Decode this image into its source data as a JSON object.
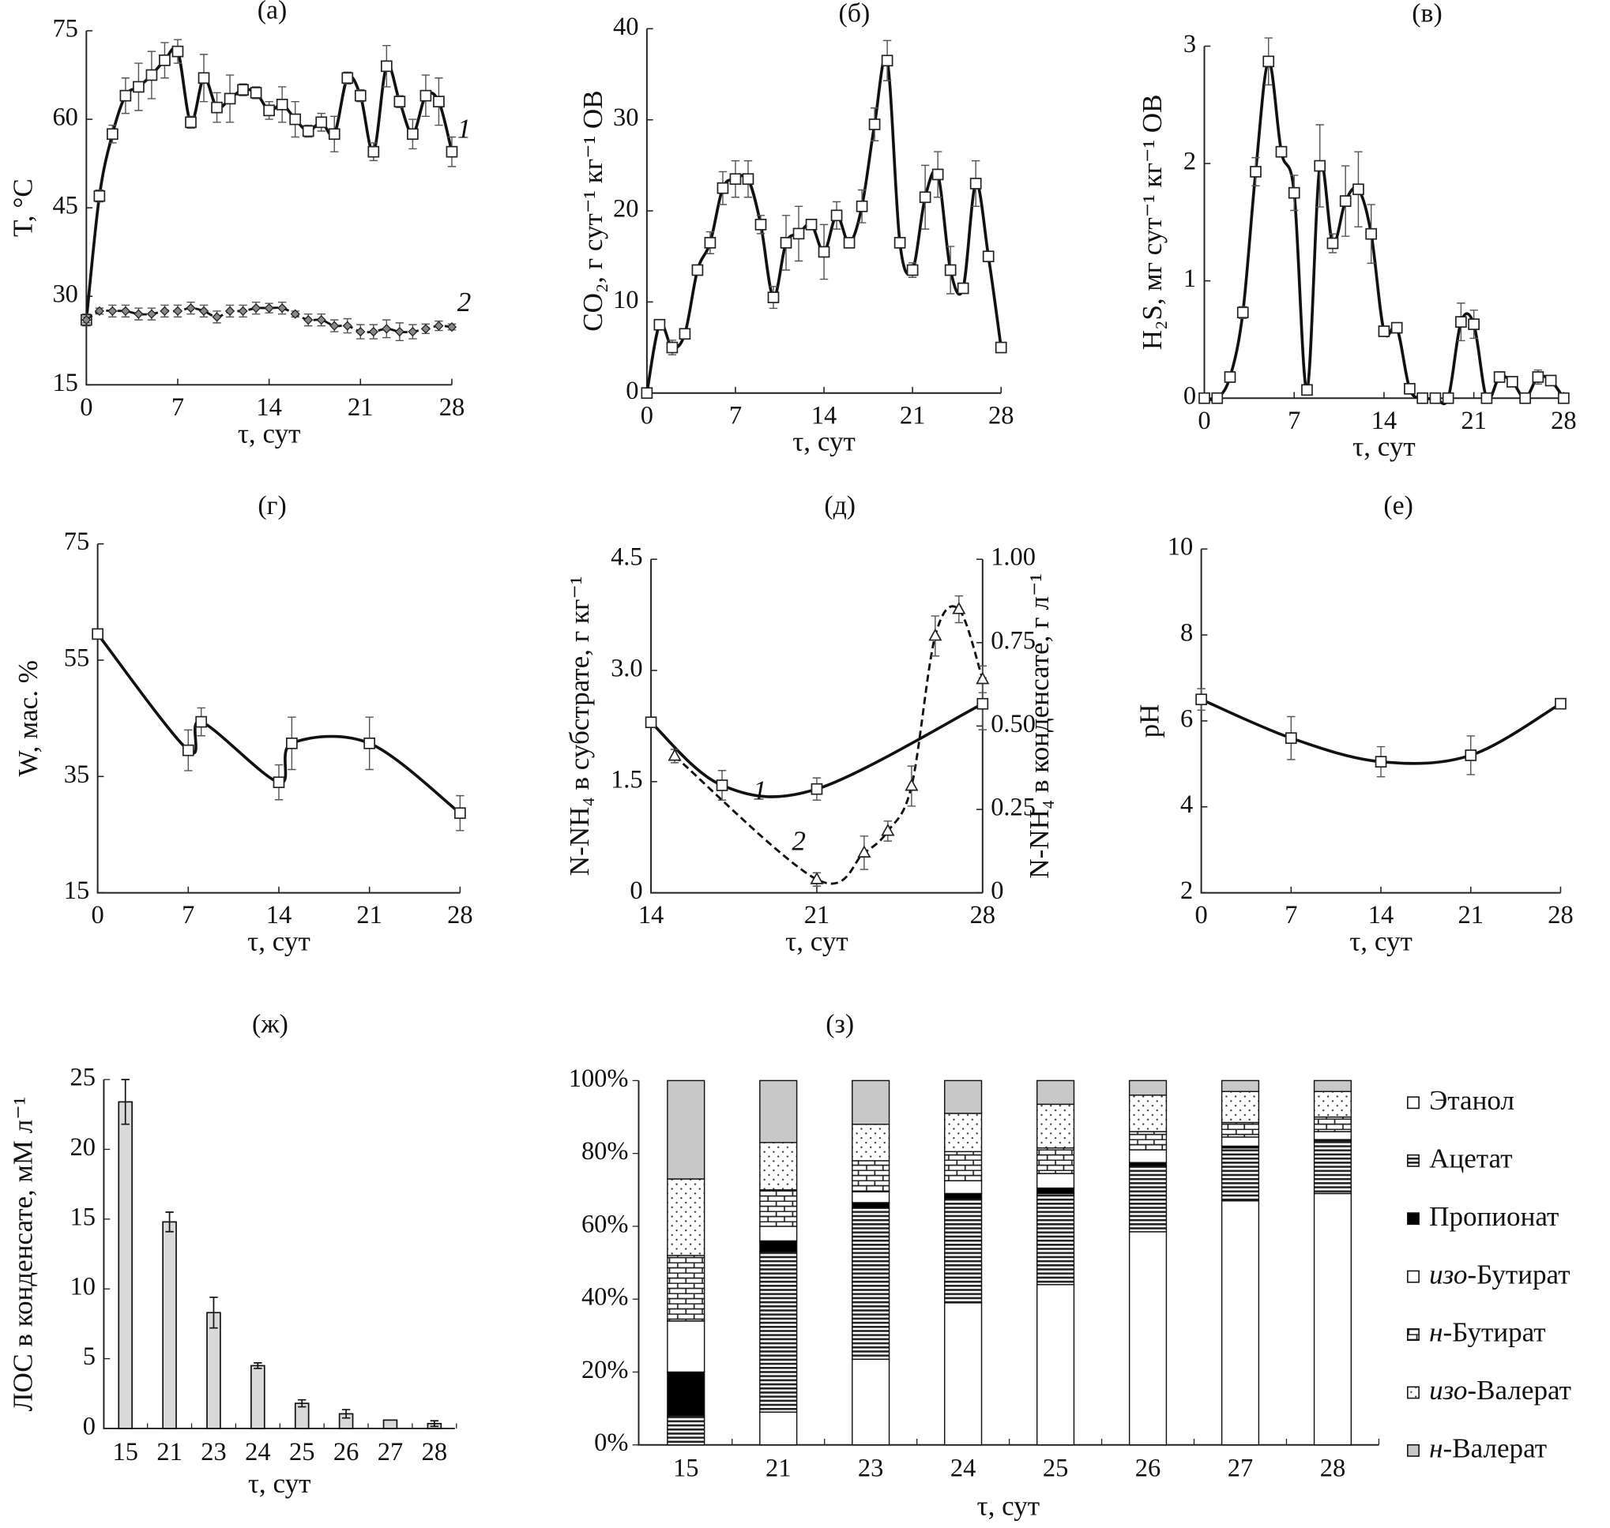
{
  "chart_data": [
    {
      "panel": "a",
      "title": "(а)",
      "type": "line",
      "xlabel": "τ, сут",
      "ylabel": "T, °C",
      "xlim": [
        0,
        28
      ],
      "xticks": [
        0,
        7,
        14,
        21,
        28
      ],
      "ylim": [
        15,
        75
      ],
      "yticks": [
        15,
        30,
        45,
        60,
        75
      ],
      "grid": false,
      "series": [
        {
          "name": "1",
          "marker": "square",
          "line": "solid",
          "x": [
            0,
            1,
            2,
            3,
            4,
            5,
            6,
            7,
            8,
            9,
            10,
            11,
            12,
            13,
            14,
            15,
            16,
            17,
            18,
            19,
            20,
            21,
            22,
            23,
            24,
            25,
            26,
            27,
            28
          ],
          "y": [
            26,
            47,
            57.5,
            64,
            65.5,
            67.5,
            70,
            71.5,
            59.5,
            67,
            62,
            63.5,
            65,
            64.5,
            61.5,
            62.5,
            60,
            58,
            59.5,
            57.5,
            67,
            64,
            54.5,
            69,
            63,
            57.5,
            64,
            63,
            54.5
          ],
          "err": [
            1,
            1,
            1.5,
            3,
            4,
            4,
            3,
            2,
            1,
            4,
            2.5,
            4,
            1,
            1,
            1.5,
            3,
            3,
            1,
            1.5,
            3,
            1,
            1,
            1.5,
            3.5,
            1,
            2.5,
            3.5,
            4,
            2.5
          ]
        },
        {
          "name": "2",
          "marker": "diamond",
          "line": "dashed",
          "x": [
            0,
            1,
            2,
            3,
            4,
            5,
            6,
            7,
            8,
            9,
            10,
            11,
            12,
            13,
            14,
            15,
            16,
            17,
            18,
            19,
            20,
            21,
            22,
            23,
            24,
            25,
            26,
            27,
            28
          ],
          "y": [
            26,
            27.5,
            27.5,
            27.5,
            27,
            27,
            27.5,
            27.5,
            28,
            27.5,
            26.5,
            27.5,
            27.5,
            28,
            28,
            28,
            27,
            26,
            26,
            25,
            25,
            24,
            24,
            24.5,
            24,
            24,
            24.5,
            25,
            24.8
          ],
          "err": [
            0.5,
            0.5,
            1,
            1,
            1,
            1,
            1,
            1,
            1,
            1,
            1,
            1,
            1,
            1,
            0.8,
            1,
            0.5,
            1,
            1,
            1,
            1.2,
            1.2,
            1.2,
            1.5,
            1.5,
            1.2,
            0.8,
            0.8,
            0.5
          ]
        }
      ]
    },
    {
      "panel": "b",
      "title": "(б)",
      "type": "line",
      "xlabel": "τ, сут",
      "ylabel": "CO₂, г сут⁻¹ кг⁻¹ ОВ",
      "xlim": [
        0,
        28
      ],
      "xticks": [
        0,
        7,
        14,
        21,
        28
      ],
      "ylim": [
        0,
        40
      ],
      "yticks": [
        0,
        10,
        20,
        30,
        40
      ],
      "grid": false,
      "series": [
        {
          "marker": "square",
          "line": "solid",
          "x": [
            0,
            1,
            2,
            3,
            4,
            5,
            6,
            7,
            8,
            9,
            10,
            11,
            12,
            13,
            14,
            15,
            16,
            17,
            18,
            19,
            20,
            21,
            22,
            23,
            24,
            25,
            26,
            27,
            28
          ],
          "y": [
            0,
            7.5,
            5,
            6.5,
            13.5,
            16.5,
            22.5,
            23.5,
            23.5,
            18.5,
            10.5,
            16.5,
            17.5,
            18.5,
            15.5,
            19.5,
            16.5,
            20.5,
            29.5,
            36.5,
            16.5,
            13.5,
            21.5,
            24,
            13.5,
            11.5,
            23,
            15,
            5
          ],
          "err": [
            0,
            0.5,
            0.8,
            0.3,
            0.3,
            1.2,
            1.8,
            2,
            2,
            1,
            1.2,
            3,
            3,
            0.3,
            3,
            1.5,
            0.3,
            1.8,
            1.8,
            2.2,
            0.3,
            0.8,
            3.5,
            2.5,
            2.6,
            0.3,
            2.5,
            0.3,
            0
          ]
        }
      ]
    },
    {
      "panel": "v",
      "title": "(в)",
      "type": "line",
      "xlabel": "τ, сут",
      "ylabel": "H₂S, мг сут⁻¹ кг⁻¹ ОВ",
      "xlim": [
        0,
        28
      ],
      "xticks": [
        0,
        7,
        14,
        21,
        28
      ],
      "ylim": [
        0,
        3
      ],
      "yticks": [
        0,
        1,
        2,
        3
      ],
      "grid": false,
      "series": [
        {
          "marker": "square",
          "line": "solid",
          "x": [
            0,
            1,
            2,
            3,
            4,
            5,
            6,
            7,
            8,
            9,
            10,
            11,
            12,
            13,
            14,
            15,
            16,
            17,
            18,
            19,
            20,
            21,
            22,
            23,
            24,
            25,
            26,
            27,
            28
          ],
          "y": [
            0,
            0,
            0.18,
            0.73,
            1.93,
            2.87,
            2.1,
            1.75,
            0.07,
            1.98,
            1.32,
            1.68,
            1.78,
            1.4,
            0.57,
            0.6,
            0.08,
            0,
            0,
            0,
            0.65,
            0.63,
            0,
            0.18,
            0.14,
            0,
            0.18,
            0.15,
            0
          ],
          "err": [
            0,
            0,
            0,
            0.05,
            0.12,
            0.2,
            0,
            0.15,
            0,
            0.35,
            0.08,
            0.3,
            0.32,
            0.25,
            0,
            0,
            0,
            0,
            0,
            0,
            0.16,
            0.12,
            0,
            0,
            0,
            0,
            0.06,
            0,
            0
          ]
        }
      ]
    },
    {
      "panel": "g",
      "title": "(г)",
      "type": "line",
      "xlabel": "τ, сут",
      "ylabel": "W, мас. %",
      "xlim": [
        0,
        28
      ],
      "xticks": [
        0,
        7,
        14,
        21,
        28
      ],
      "ylim": [
        15,
        75
      ],
      "yticks": [
        15,
        35,
        55,
        75
      ],
      "grid": false,
      "series": [
        {
          "marker": "square",
          "line": "solid",
          "x": [
            0,
            7,
            8,
            14,
            15,
            21,
            28
          ],
          "y": [
            59.5,
            39.5,
            44.4,
            34,
            40.7,
            40.7,
            28.7
          ],
          "err": [
            0,
            3.5,
            2.4,
            3,
            4.5,
            4.5,
            3
          ]
        }
      ]
    },
    {
      "panel": "d",
      "title": "(д)",
      "type": "line",
      "xlabel": "τ, сут",
      "ylabel": "N-NH₄ в субстрате, г кг⁻¹",
      "y2label": "N-NH₄ в конденсате, г л⁻¹",
      "xlim": [
        14,
        28
      ],
      "xticks": [
        14,
        21,
        28
      ],
      "ylim": [
        0,
        4.5
      ],
      "yticks": [
        "0",
        "1.5",
        "3.0",
        "4.5"
      ],
      "y2lim": [
        0,
        1
      ],
      "y2ticks": [
        "0",
        "0.25",
        "0.50",
        "0.75",
        "1.00"
      ],
      "grid": false,
      "series": [
        {
          "name": "1",
          "axis": "left",
          "marker": "square",
          "line": "solid",
          "x": [
            14,
            17,
            21,
            28
          ],
          "y": [
            2.3,
            1.45,
            1.4,
            2.55
          ],
          "err": [
            0,
            0.2,
            0.15,
            0.35
          ]
        },
        {
          "name": "2",
          "axis": "right",
          "marker": "triangle",
          "line": "dashed",
          "x": [
            15,
            21,
            23,
            24,
            25,
            26,
            27,
            28
          ],
          "y": [
            0.41,
            0.04,
            0.12,
            0.185,
            0.32,
            0.77,
            0.85,
            0.64
          ],
          "err": [
            0.02,
            0.02,
            0.05,
            0.03,
            0.06,
            0.06,
            0.04,
            0.04
          ]
        }
      ]
    },
    {
      "panel": "e",
      "title": "(е)",
      "type": "line",
      "xlabel": "τ, сут",
      "ylabel": "pH",
      "xlim": [
        0,
        28
      ],
      "xticks": [
        0,
        7,
        14,
        21,
        28
      ],
      "ylim": [
        2,
        10
      ],
      "yticks": [
        2,
        4,
        6,
        8,
        10
      ],
      "grid": false,
      "series": [
        {
          "marker": "square",
          "line": "solid",
          "x": [
            0,
            7,
            14,
            21,
            28
          ],
          "y": [
            6.5,
            5.6,
            5.05,
            5.2,
            6.4
          ],
          "err": [
            0.25,
            0.5,
            0.35,
            0.45,
            0
          ]
        }
      ]
    },
    {
      "panel": "zh",
      "title": "(ж)",
      "type": "bar",
      "xlabel": "τ, сут",
      "ylabel": "ЛОС в конденсате, мМ л⁻¹",
      "categories": [
        "15",
        "21",
        "23",
        "24",
        "25",
        "26",
        "27",
        "28"
      ],
      "values": [
        23.4,
        14.8,
        8.3,
        4.5,
        1.8,
        1.05,
        0.6,
        0.35
      ],
      "err": [
        1.6,
        0.7,
        1.1,
        0.2,
        0.25,
        0.3,
        0,
        0.2
      ],
      "ylim": [
        0,
        25
      ],
      "yticks": [
        0,
        5,
        10,
        15,
        20,
        25
      ],
      "color": "#d9d9d9",
      "grid": false
    },
    {
      "panel": "z",
      "title": "(з)",
      "type": "bar",
      "stacked": "percent",
      "xlabel": "τ, сут",
      "categories": [
        "15",
        "21",
        "23",
        "24",
        "25",
        "26",
        "27",
        "28"
      ],
      "ylim": [
        0,
        100
      ],
      "yticks": [
        "0%",
        "20%",
        "40%",
        "60%",
        "80%",
        "100%"
      ],
      "legend_position": "right",
      "series": [
        {
          "name": "Этанол",
          "fill": "white",
          "values": [
            0,
            9,
            23.5,
            39,
            44,
            58.5,
            67,
            69
          ]
        },
        {
          "name": "Ацетат",
          "fill": "horizontal-stripes",
          "values": [
            8,
            44,
            41.5,
            28.5,
            25,
            18,
            14.5,
            14.5
          ]
        },
        {
          "name": "Пропионат",
          "fill": "black",
          "values": [
            12,
            3,
            1.5,
            1.5,
            1.5,
            1,
            0.5,
            0.3
          ]
        },
        {
          "name": "изо-Бутират",
          "fill": "white",
          "values": [
            14,
            4,
            3,
            3.5,
            4,
            3.5,
            2.5,
            2.2
          ]
        },
        {
          "name": "н-Бутират",
          "fill": "bricks",
          "values": [
            18,
            10,
            8.5,
            8,
            7,
            5,
            4,
            4
          ]
        },
        {
          "name": "изо-Валерат",
          "fill": "dots",
          "values": [
            21,
            13,
            10,
            10.5,
            12,
            10,
            8.5,
            7
          ]
        },
        {
          "name": "н-Валерат",
          "fill": "gray",
          "values": [
            27,
            17,
            12,
            9,
            6.5,
            4,
            3,
            3
          ]
        }
      ]
    }
  ]
}
